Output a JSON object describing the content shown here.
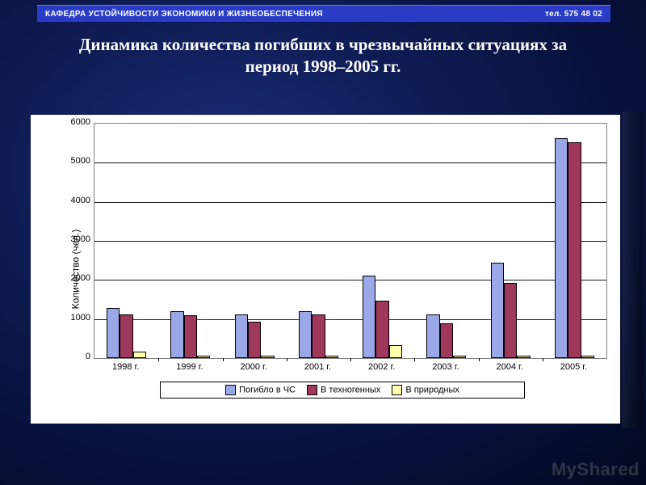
{
  "header": {
    "left": "КАФЕДРА  УСТОЙЧИВОСТИ  ЭКОНОМИКИ  И  ЖИЗНЕОБЕСПЕЧЕНИЯ",
    "right": "тел.  575  48  02",
    "bg_color": "#2a3cc5"
  },
  "title": "Динамика количества погибших в чрезвычайных ситуациях за период 1998–2005 гг.",
  "watermark": "MyShared",
  "chart": {
    "type": "bar",
    "ylabel": "Количество (чел.)",
    "categories": [
      "1998 г.",
      "1999 г.",
      "2000 г.",
      "2001 г.",
      "2002 г.",
      "2003 г.",
      "2004 г.",
      "2005 г."
    ],
    "series": [
      {
        "name": "Погибло в ЧС",
        "color": "#9aa8e8",
        "values": [
          1280,
          1200,
          1120,
          1200,
          2120,
          1110,
          2450,
          5620
        ]
      },
      {
        "name": "В техногенных",
        "color": "#a0385c",
        "values": [
          1120,
          1100,
          930,
          1120,
          1460,
          900,
          1930,
          5520
        ]
      },
      {
        "name": "В природных",
        "color": "#ffffb0",
        "values": [
          160,
          70,
          60,
          60,
          340,
          60,
          60,
          70
        ]
      }
    ],
    "ylim": [
      0,
      6000
    ],
    "ytick_step": 1000,
    "bar_group_width": 0.62,
    "plot_bg": "#ffffff",
    "panel_bg": "#ffffff",
    "grid_color": "#000000",
    "axis_fontsize": 11,
    "label_fontsize": 12,
    "legend_position": "bottom",
    "border_color": "#808080"
  }
}
